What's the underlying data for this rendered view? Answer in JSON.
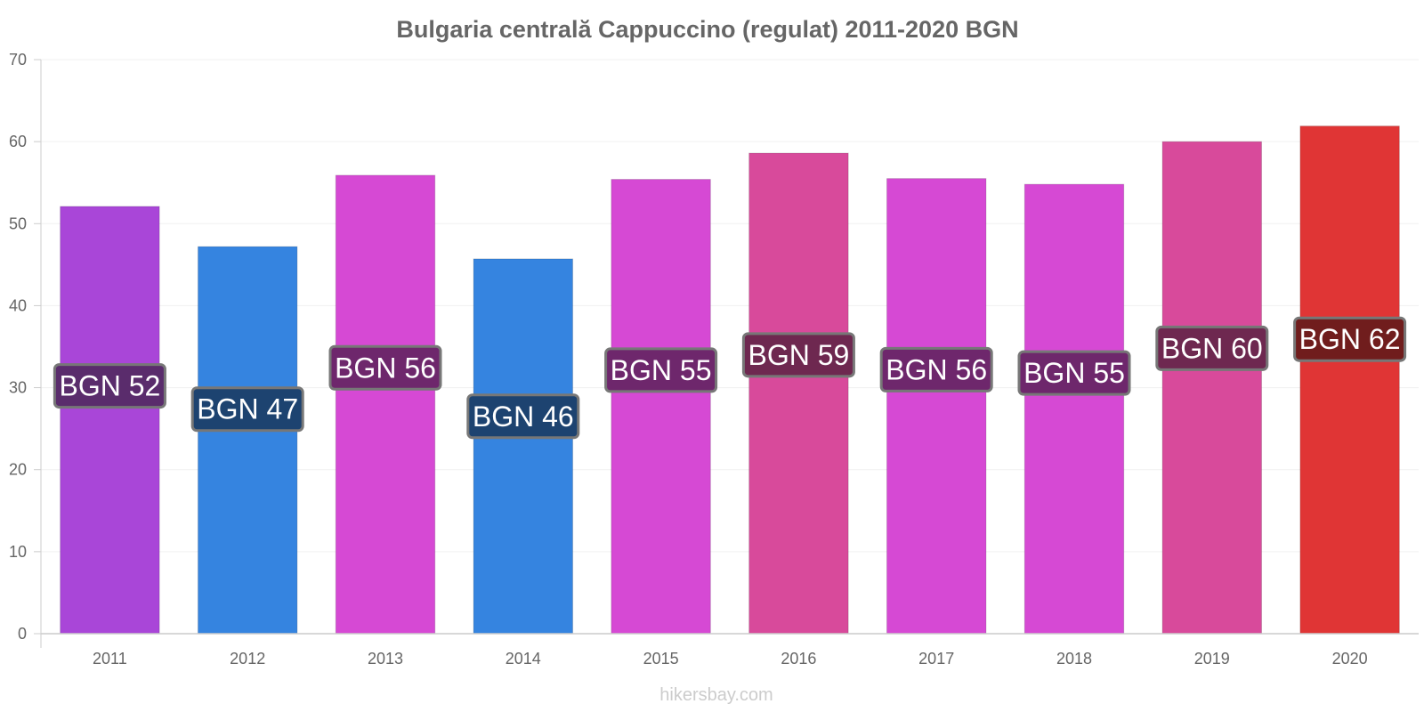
{
  "chart_data": {
    "type": "bar",
    "title": "Bulgaria centrală Cappuccino (regulat) 2011-2020 BGN",
    "categories": [
      "2011",
      "2012",
      "2013",
      "2014",
      "2015",
      "2016",
      "2017",
      "2018",
      "2019",
      "2020"
    ],
    "values": [
      52.1,
      47.2,
      55.9,
      45.7,
      55.4,
      58.6,
      55.5,
      54.8,
      60.0,
      61.9
    ],
    "value_labels": [
      "BGN 52",
      "BGN 47",
      "BGN 56",
      "BGN 46",
      "BGN 55",
      "BGN 59",
      "BGN 56",
      "BGN 55",
      "BGN 60",
      "BGN 62"
    ],
    "colors": [
      "#a946d8",
      "#3584e0",
      "#d649d4",
      "#3584e0",
      "#d649d4",
      "#d84a9b",
      "#d649d4",
      "#d649d4",
      "#d84a9b",
      "#e03535"
    ],
    "label_bg_colors": [
      "#5a2c6c",
      "#1d4370",
      "#6e276c",
      "#1d4370",
      "#6e276c",
      "#6e2850",
      "#6e276c",
      "#6e276c",
      "#6e2850",
      "#701d1d"
    ],
    "ylim": [
      0,
      70
    ],
    "yticks": [
      "0",
      "10",
      "20",
      "30",
      "40",
      "50",
      "60",
      "70"
    ],
    "xlabel": "",
    "ylabel": "",
    "grid": true
  },
  "footer": {
    "credit": "hikersbay.com"
  }
}
